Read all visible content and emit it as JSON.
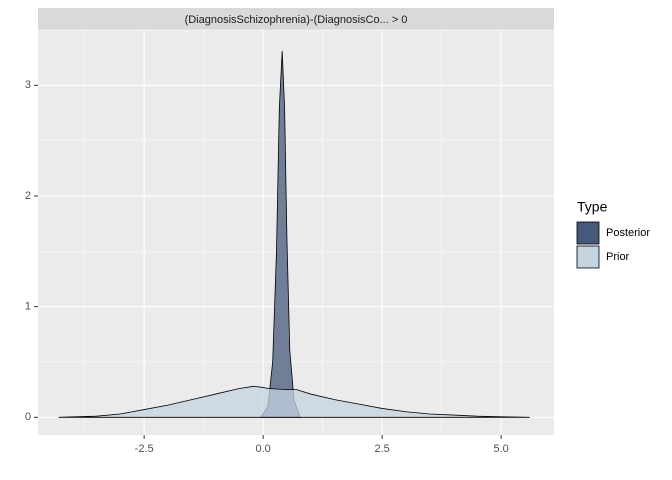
{
  "chart_data": {
    "type": "area",
    "facet_label": "(DiagnosisSchizophrenia)-(DiagnosisCo... > 0",
    "legend_title": "Type",
    "legend_position": "right",
    "grid": true,
    "series": [
      {
        "name": "Posterior",
        "color": "#47597b",
        "x": [
          -0.05,
          0.1,
          0.2,
          0.28,
          0.34,
          0.4,
          0.45,
          0.5,
          0.56,
          0.65,
          0.78
        ],
        "values": [
          0,
          0.1,
          0.5,
          1.5,
          2.8,
          3.31,
          2.8,
          1.6,
          0.6,
          0.15,
          0
        ]
      },
      {
        "name": "Prior",
        "color": "#c3d3e0",
        "x": [
          -4.3,
          -3.5,
          -3.0,
          -2.5,
          -2.0,
          -1.5,
          -1.0,
          -0.5,
          -0.2,
          0.0,
          0.1,
          0.5,
          0.7,
          1.0,
          1.5,
          2.0,
          2.5,
          3.0,
          3.5,
          4.0,
          4.5,
          5.0,
          5.6
        ],
        "values": [
          0,
          0.01,
          0.03,
          0.07,
          0.11,
          0.16,
          0.21,
          0.26,
          0.28,
          0.27,
          0.26,
          0.25,
          0.25,
          0.21,
          0.16,
          0.12,
          0.08,
          0.05,
          0.03,
          0.02,
          0.01,
          0.005,
          0
        ]
      }
    ],
    "xlim": [
      -4.73,
      6.11
    ],
    "ylim": [
      -0.16,
      3.5
    ],
    "xticks": [
      -2.5,
      {
        "value": 0,
        "label": "0.0"
      },
      2.5,
      {
        "value": 5,
        "label": "5.0"
      }
    ],
    "yticks": [
      0,
      1,
      2,
      3
    ]
  }
}
